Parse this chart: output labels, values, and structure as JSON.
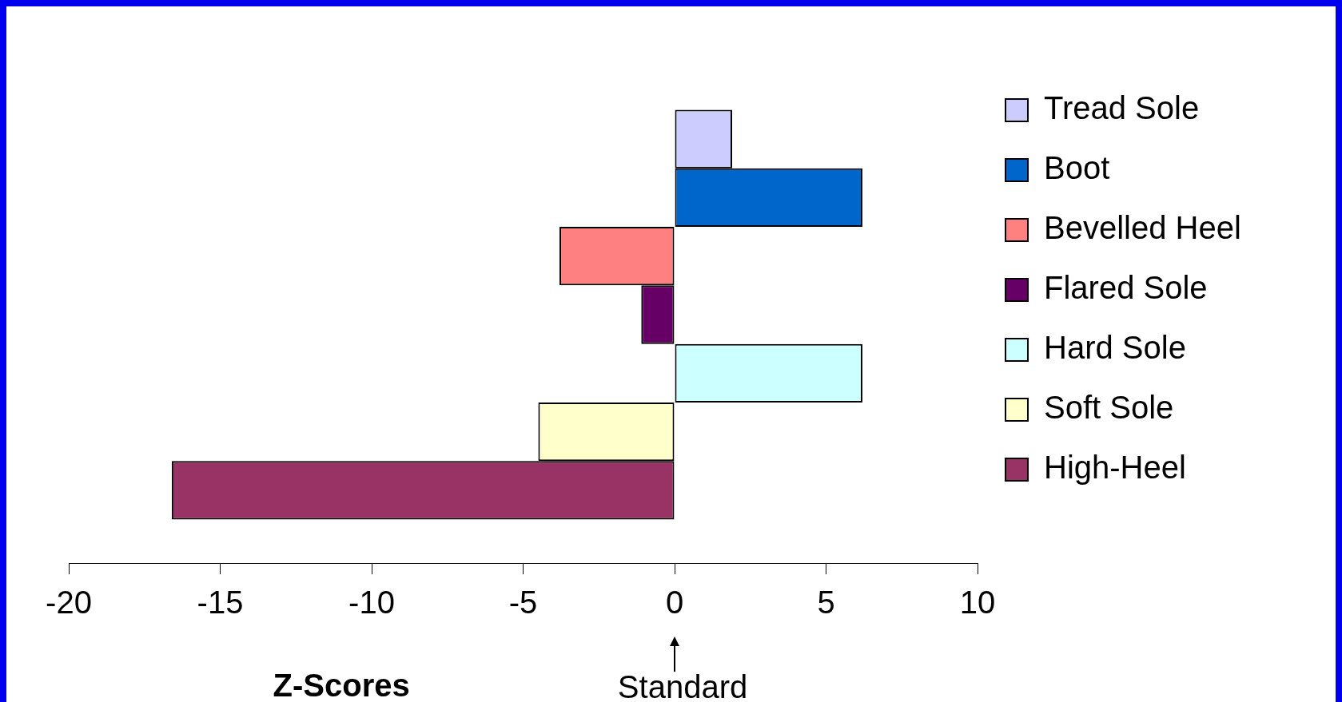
{
  "chart_data": {
    "type": "bar",
    "orientation": "horizontal",
    "xlabel": "Z-Scores",
    "categories": [
      null
    ],
    "series": [
      {
        "name": "Tread Sole",
        "color": "#ccccff",
        "values": [
          1.9
        ]
      },
      {
        "name": "Boot",
        "color": "#0066cc",
        "values": [
          6.2
        ]
      },
      {
        "name": "Bevelled Heel",
        "color": "#ff8080",
        "values": [
          -3.8
        ]
      },
      {
        "name": "Flared Sole",
        "color": "#660066",
        "values": [
          -1.1
        ]
      },
      {
        "name": "Hard Sole",
        "color": "#ccffff",
        "values": [
          6.2
        ]
      },
      {
        "name": "Soft Sole",
        "color": "#ffffcc",
        "values": [
          -4.5
        ]
      },
      {
        "name": "High-Heel",
        "color": "#993366",
        "values": [
          -16.6
        ]
      }
    ],
    "xlim": [
      -20,
      10
    ],
    "xticks": [
      -20,
      -15,
      -10,
      -5,
      0,
      5,
      10
    ],
    "annotations": [
      "Standard"
    ],
    "legend": "right",
    "grid": false
  }
}
